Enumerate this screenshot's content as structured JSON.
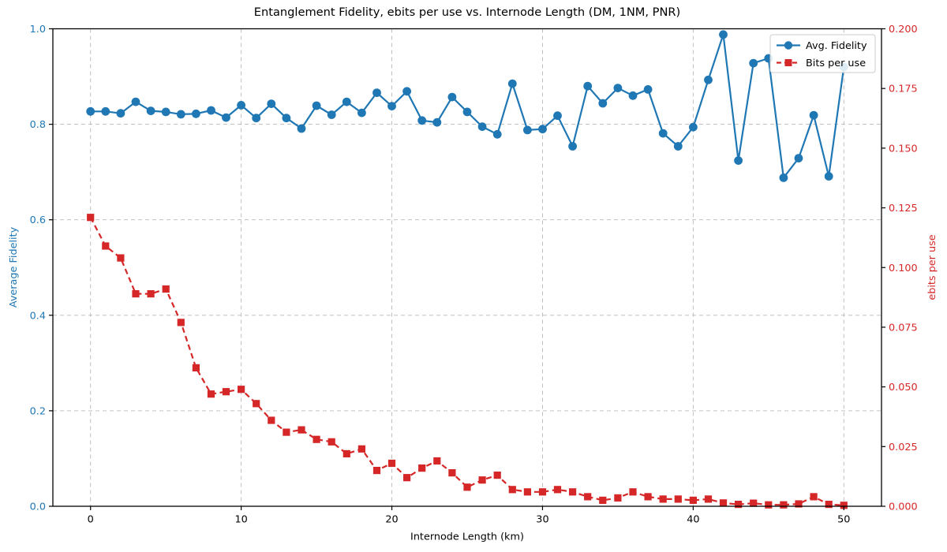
{
  "colors": {
    "fidelity_blue": "#1f77b4",
    "ebits_red": "#d62728",
    "grid_gray": "#b8b8b8",
    "spine_black": "#000000",
    "legend_border": "#cccccc",
    "title_text": "#000000"
  },
  "legend": {
    "items": [
      {
        "label": "Avg. Fidelity",
        "marker": "circle-marker-icon",
        "line": "solid",
        "color": "#1f77b4"
      },
      {
        "label": "Bits per use",
        "marker": "square-marker-icon",
        "line": "dashed",
        "color": "#d62728"
      }
    ],
    "position": "upper right"
  },
  "chart_data": {
    "type": "line",
    "title": "Entanglement Fidelity, ebits per use vs. Internode Length (DM, 1NM, PNR)",
    "xlabel": "Internode Length (km)",
    "ylabel_left": "Average Fidelity",
    "ylabel_right": "ebits per use",
    "xlim": [
      -2.5,
      52.5
    ],
    "ylim_left": [
      0.0,
      1.0
    ],
    "ylim_right": [
      0.0,
      0.2
    ],
    "grid": true,
    "x_tick_values": [
      0,
      10,
      20,
      30,
      40,
      50
    ],
    "x_tick_labels": [
      "0",
      "10",
      "20",
      "30",
      "40",
      "50"
    ],
    "y_left_tick_values": [
      0.0,
      0.2,
      0.4,
      0.6,
      0.8,
      1.0
    ],
    "y_left_tick_labels": [
      "0.0",
      "0.2",
      "0.4",
      "0.6",
      "0.8",
      "1.0"
    ],
    "y_right_tick_values": [
      0.0,
      0.025,
      0.05,
      0.075,
      0.1,
      0.125,
      0.15,
      0.175,
      0.2
    ],
    "y_right_tick_labels": [
      "0.000",
      "0.025",
      "0.050",
      "0.075",
      "0.100",
      "0.125",
      "0.150",
      "0.175",
      "0.200"
    ],
    "x": [
      0,
      1,
      2,
      3,
      4,
      5,
      6,
      7,
      8,
      9,
      10,
      11,
      12,
      13,
      14,
      15,
      16,
      17,
      18,
      19,
      20,
      21,
      22,
      23,
      24,
      25,
      26,
      27,
      28,
      29,
      30,
      31,
      32,
      33,
      34,
      35,
      36,
      37,
      38,
      39,
      40,
      41,
      42,
      43,
      44,
      45,
      46,
      47,
      48,
      49,
      50
    ],
    "series": [
      {
        "name": "Avg. Fidelity",
        "axis": "left",
        "color": "#1f77b4",
        "marker": "circle",
        "line": "solid",
        "values": [
          0.827,
          0.827,
          0.823,
          0.847,
          0.828,
          0.826,
          0.821,
          0.822,
          0.829,
          0.814,
          0.84,
          0.813,
          0.843,
          0.813,
          0.791,
          0.839,
          0.82,
          0.847,
          0.824,
          0.866,
          0.838,
          0.869,
          0.808,
          0.804,
          0.857,
          0.826,
          0.795,
          0.779,
          0.885,
          0.788,
          0.79,
          0.818,
          0.754,
          0.88,
          0.844,
          0.876,
          0.86,
          0.873,
          0.781,
          0.754,
          0.794,
          0.893,
          0.988,
          0.724,
          0.928,
          0.938,
          0.688,
          0.729,
          0.819,
          0.691,
          0.92
        ]
      },
      {
        "name": "Bits per use",
        "axis": "right",
        "color": "#d62728",
        "marker": "square",
        "line": "dashed",
        "values": [
          0.121,
          0.109,
          0.104,
          0.089,
          0.089,
          0.091,
          0.077,
          0.058,
          0.047,
          0.048,
          0.049,
          0.043,
          0.036,
          0.031,
          0.032,
          0.028,
          0.027,
          0.022,
          0.024,
          0.015,
          0.018,
          0.012,
          0.016,
          0.019,
          0.014,
          0.008,
          0.011,
          0.013,
          0.007,
          0.006,
          0.006,
          0.007,
          0.006,
          0.004,
          0.0025,
          0.0035,
          0.006,
          0.004,
          0.003,
          0.003,
          0.0025,
          0.003,
          0.0014,
          0.0008,
          0.0013,
          0.0006,
          0.0006,
          0.001,
          0.004,
          0.0008,
          0.0004
        ]
      }
    ]
  }
}
